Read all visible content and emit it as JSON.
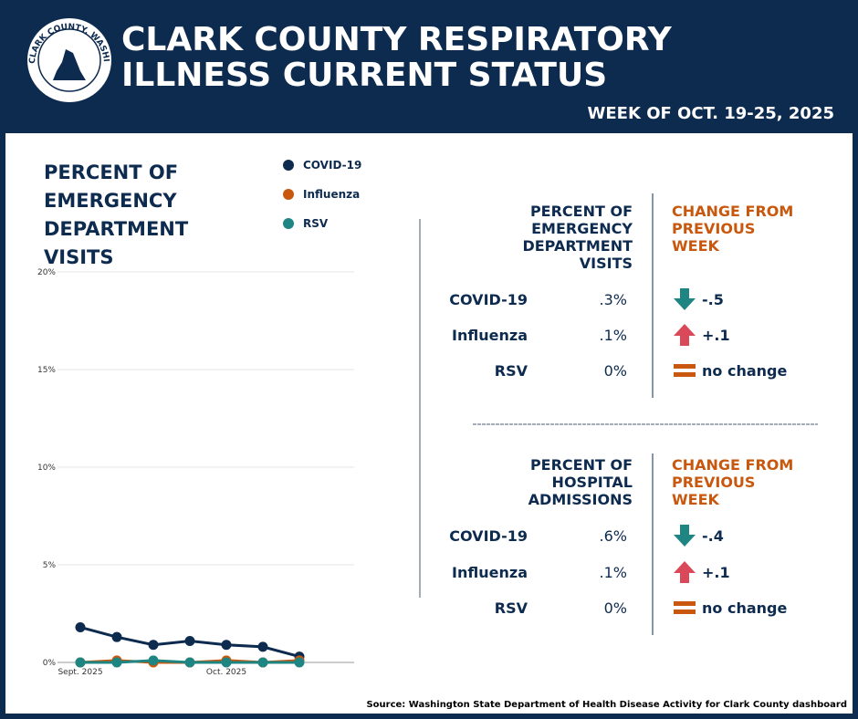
{
  "header": {
    "logo_text": "CLARK COUNTY, WASHINGTON",
    "title": "CLARK COUNTY RESPIRATORY ILLNESS CURRENT STATUS",
    "subtitle": "WEEK OF OCT. 19-25, 2025"
  },
  "chart_data": {
    "type": "line",
    "title": "PERCENT OF EMERGENCY DEPARTMENT VISITS",
    "categories": [
      "Sept. 2025",
      null,
      null,
      null,
      "Oct. 2025",
      null,
      null
    ],
    "series": [
      {
        "name": "COVID-19",
        "color": "#0d2a4f",
        "values": [
          1.8,
          1.3,
          0.9,
          1.1,
          0.9,
          0.8,
          0.3
        ]
      },
      {
        "name": "Influenza",
        "color": "#c9580f",
        "values": [
          0,
          0.1,
          0,
          0,
          0.1,
          0,
          0.1
        ]
      },
      {
        "name": "RSV",
        "color": "#1f8582",
        "values": [
          0,
          0,
          0.1,
          0,
          0,
          0,
          0
        ]
      }
    ],
    "ylim": [
      0,
      20
    ],
    "yticks": [
      {
        "value": 0,
        "label": "0%"
      },
      {
        "value": 5,
        "label": "5%"
      },
      {
        "value": 10,
        "label": "10%"
      },
      {
        "value": 15,
        "label": "15%"
      },
      {
        "value": 20,
        "label": "20%"
      }
    ],
    "grid": true
  },
  "tables": [
    {
      "header": [
        "PERCENT OF EMERGENCY DEPARTMENT VISITS",
        "CHANGE FROM PREVIOUS WEEK"
      ],
      "rows": [
        [
          "COVID-19",
          ".3%",
          "-.5"
        ],
        [
          "Influenza",
          ".1%",
          "+.1"
        ],
        [
          "RSV",
          "0%",
          "no change"
        ]
      ]
    },
    {
      "header": [
        "PERCENT OF HOSPITAL ADMISSIONS",
        "CHANGE FROM PREVIOUS WEEK"
      ],
      "rows": [
        [
          "COVID-19",
          ".6%",
          "-.4"
        ],
        [
          "Influenza",
          ".1%",
          "+.1"
        ],
        [
          "RSV",
          "0%",
          "no change"
        ]
      ]
    }
  ],
  "source": "Source: Washington State Department of Health Disease Activity for Clark County dashboard"
}
